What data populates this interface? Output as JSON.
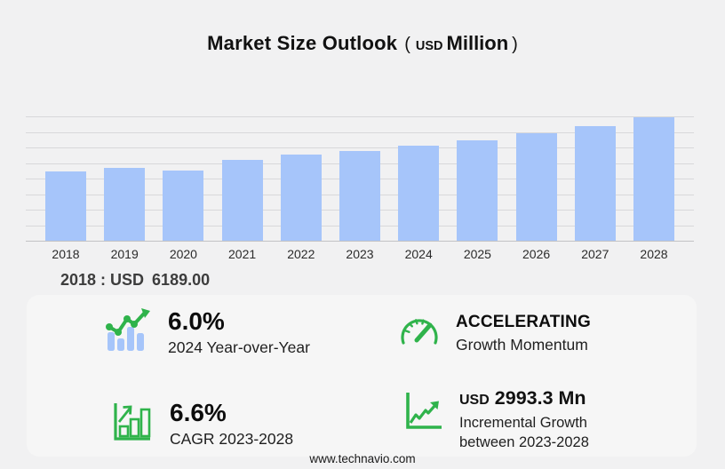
{
  "title": {
    "main": "Market Size Outlook",
    "paren_open": "(",
    "currency": "USD",
    "unit": "Million",
    "paren_close": ")"
  },
  "chart_data": {
    "type": "bar",
    "title": "Market Size Outlook (USD Million)",
    "categories": [
      "2018",
      "2019",
      "2020",
      "2021",
      "2022",
      "2023",
      "2024",
      "2025",
      "2026",
      "2027",
      "2028"
    ],
    "values": [
      6189,
      6505,
      6230,
      7200,
      7620,
      7950,
      8427,
      8940,
      9560,
      10210,
      10943
    ],
    "xlabel": "",
    "ylabel": "",
    "ylim": [
      0,
      11040
    ],
    "grid": true,
    "gridline_count": 9,
    "y_tick_labels_visible": false,
    "legend": false,
    "bar_color": "#a6c5fa"
  },
  "annotation": {
    "prefix": "2018 : USD",
    "value": "6189.00"
  },
  "stats": [
    {
      "icon": "mini-bar-line-chart-icon",
      "value": "6.0%",
      "label": "2024 Year-over-Year"
    },
    {
      "icon": "speedometer-icon",
      "value": "ACCELERATING",
      "label": "Growth Momentum"
    },
    {
      "icon": "bar-growth-arrow-icon",
      "value": "6.6%",
      "label": "CAGR 2023-2028"
    },
    {
      "icon": "line-growth-axes-icon",
      "value_prefix": "USD",
      "value": "2993.3 Mn",
      "label_line1": "Incremental Growth",
      "label_line2": "between 2023-2028"
    }
  ],
  "footer": {
    "website": "www.technavio.com"
  },
  "colors": {
    "accent_green": "#2fb34b",
    "bar_blue": "#a6c5fa",
    "background": "#f1f1f2",
    "gridline": "#d8d8da",
    "baseline": "#c2c2c4",
    "title_text": "#111111",
    "annotation_text": "#3d3d3d"
  }
}
